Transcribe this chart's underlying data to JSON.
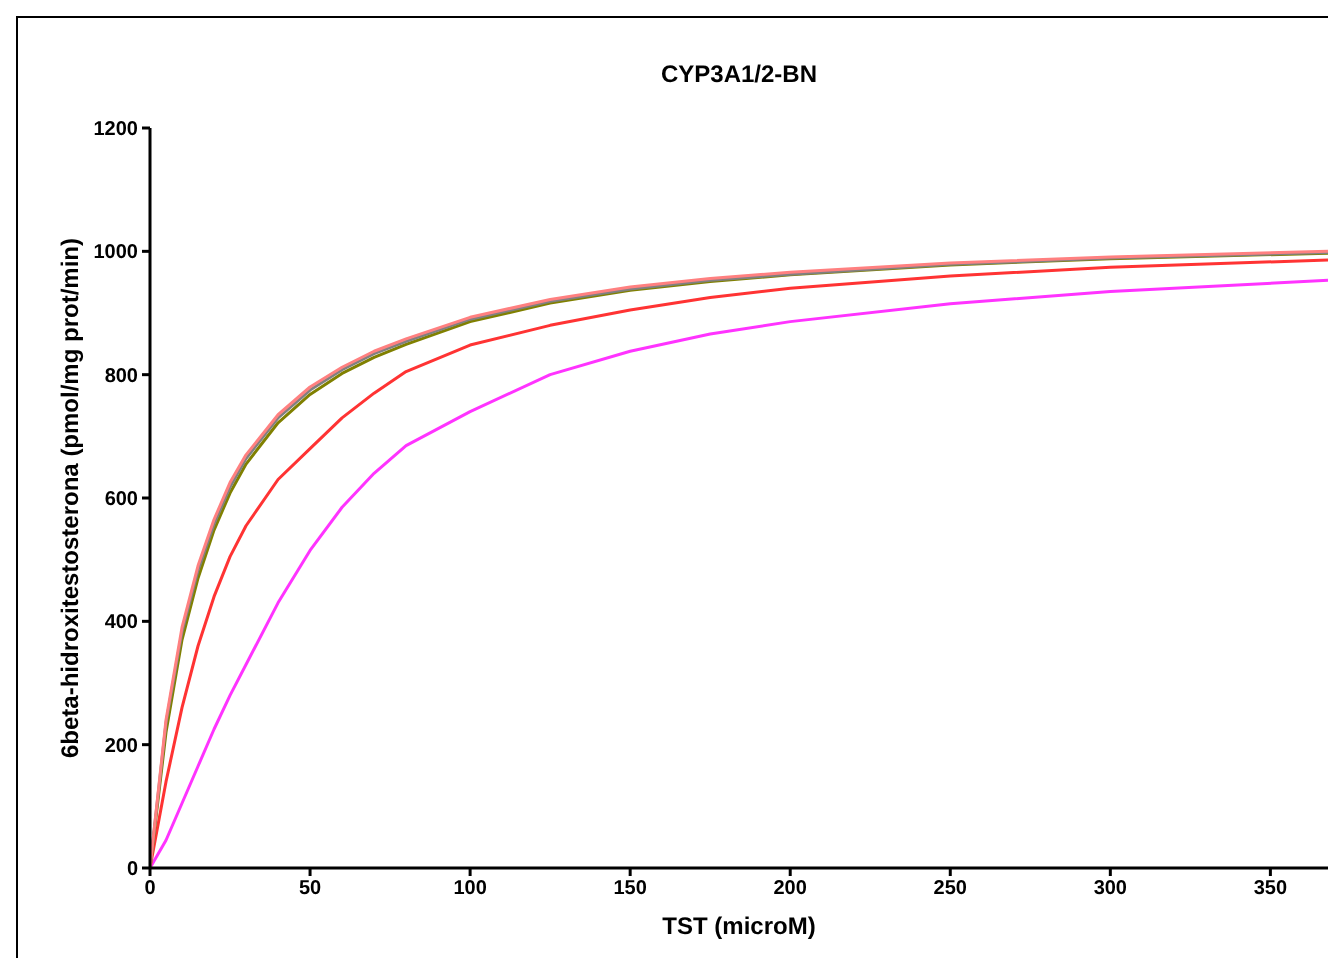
{
  "chart_data": {
    "type": "line",
    "title": "CYP3A1/2-BN",
    "xlabel": "TST (microM)",
    "ylabel": "6beta-hidroxitestosterona (pmol/mg prot/min)",
    "x": [
      0,
      5,
      10,
      15,
      20,
      25,
      30,
      40,
      50,
      60,
      70,
      80,
      100,
      125,
      150,
      175,
      200,
      250,
      300,
      368
    ],
    "xlim": [
      0,
      368
    ],
    "xticks": [
      0,
      50,
      100,
      150,
      200,
      250,
      300,
      350
    ],
    "ylim": [
      0,
      1200
    ],
    "yticks": [
      0,
      200,
      400,
      600,
      800,
      1000,
      1200
    ],
    "grid": false,
    "legend": false,
    "marker": "none",
    "line_style": "solid",
    "series": [
      {
        "color": "#ff33ff",
        "values": [
          0,
          45,
          105,
          165,
          225,
          280,
          330,
          430,
          515,
          585,
          640,
          685,
          740,
          800,
          838,
          866,
          886,
          915,
          935,
          953
        ]
      },
      {
        "color": "#ff3333",
        "values": [
          0,
          140,
          260,
          360,
          440,
          505,
          555,
          630,
          680,
          730,
          770,
          805,
          848,
          880,
          905,
          925,
          940,
          960,
          974,
          986
        ]
      },
      {
        "color": "#808000",
        "values": [
          0,
          220,
          370,
          470,
          548,
          608,
          655,
          722,
          768,
          802,
          828,
          849,
          886,
          916,
          937,
          951,
          962,
          978,
          988,
          997
        ]
      },
      {
        "color": "#808080",
        "values": [
          0,
          235,
          383,
          483,
          558,
          618,
          664,
          730,
          775,
          808,
          834,
          854,
          890,
          919,
          939,
          953,
          963,
          979,
          989,
          998
        ]
      },
      {
        "color": "#ff8080",
        "values": [
          0,
          240,
          390,
          490,
          565,
          625,
          670,
          735,
          780,
          812,
          838,
          858,
          893,
          922,
          942,
          956,
          966,
          981,
          991,
          1000
        ]
      }
    ]
  }
}
